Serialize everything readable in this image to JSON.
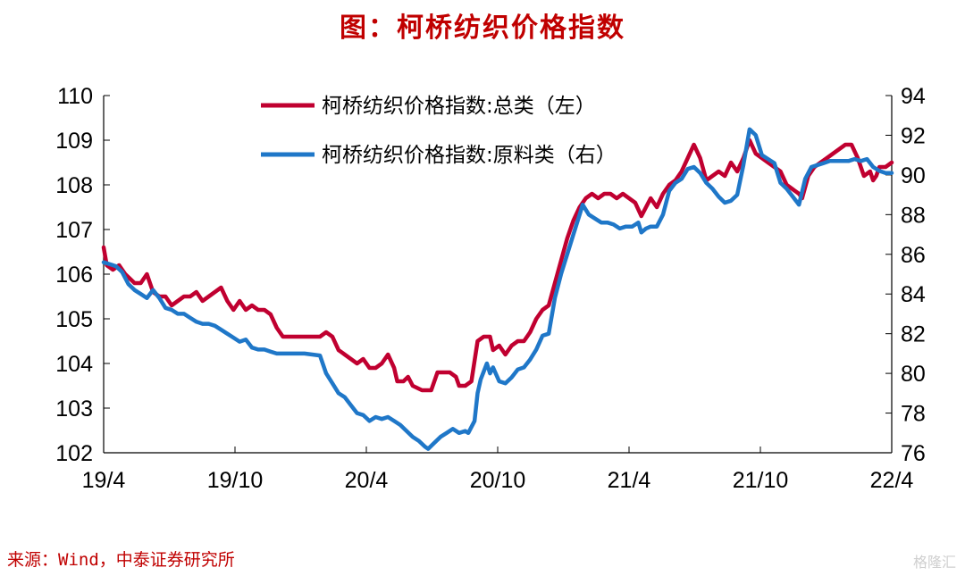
{
  "title": "图：柯桥纺织价格指数",
  "source": "来源：Wind，中泰证券研究所",
  "watermark": "格隆汇",
  "chart_data": {
    "type": "line",
    "x_tick_labels": [
      "19/4",
      "19/10",
      "20/4",
      "20/10",
      "21/4",
      "21/10",
      "22/4"
    ],
    "y_left": {
      "ylim": [
        102,
        110
      ],
      "ticks": [
        102,
        103,
        104,
        105,
        106,
        107,
        108,
        109,
        110
      ]
    },
    "y_right": {
      "ylim": [
        76,
        94
      ],
      "ticks": [
        76,
        78,
        80,
        82,
        84,
        86,
        88,
        90,
        92,
        94
      ]
    },
    "legend_position": "top-center",
    "colors": {
      "total": "#c00030",
      "raw": "#1f77c8"
    },
    "series": [
      {
        "name": "柯桥纺织价格指数:总类（左）",
        "axis": "left",
        "points": [
          [
            0.0,
            106.6
          ],
          [
            0.1,
            106.2
          ],
          [
            0.3,
            106.1
          ],
          [
            0.5,
            106.2
          ],
          [
            0.7,
            106.0
          ],
          [
            1.0,
            105.8
          ],
          [
            1.2,
            105.8
          ],
          [
            1.4,
            106.0
          ],
          [
            1.6,
            105.6
          ],
          [
            1.8,
            105.5
          ],
          [
            2.0,
            105.5
          ],
          [
            2.2,
            105.3
          ],
          [
            2.4,
            105.4
          ],
          [
            2.6,
            105.5
          ],
          [
            2.8,
            105.5
          ],
          [
            3.0,
            105.6
          ],
          [
            3.2,
            105.4
          ],
          [
            3.4,
            105.5
          ],
          [
            3.6,
            105.6
          ],
          [
            3.8,
            105.7
          ],
          [
            4.0,
            105.4
          ],
          [
            4.2,
            105.2
          ],
          [
            4.4,
            105.4
          ],
          [
            4.6,
            105.2
          ],
          [
            4.8,
            105.3
          ],
          [
            5.0,
            105.2
          ],
          [
            5.2,
            105.2
          ],
          [
            5.4,
            105.1
          ],
          [
            5.6,
            104.8
          ],
          [
            5.8,
            104.6
          ],
          [
            6.0,
            104.6
          ],
          [
            6.5,
            104.6
          ],
          [
            7.0,
            104.6
          ],
          [
            7.2,
            104.7
          ],
          [
            7.4,
            104.6
          ],
          [
            7.6,
            104.3
          ],
          [
            7.8,
            104.2
          ],
          [
            8.0,
            104.1
          ],
          [
            8.2,
            104.0
          ],
          [
            8.4,
            104.1
          ],
          [
            8.6,
            103.9
          ],
          [
            8.8,
            103.9
          ],
          [
            9.0,
            104.0
          ],
          [
            9.2,
            104.2
          ],
          [
            9.4,
            103.9
          ],
          [
            9.5,
            103.6
          ],
          [
            9.7,
            103.6
          ],
          [
            9.85,
            103.7
          ],
          [
            10.0,
            103.5
          ],
          [
            10.3,
            103.4
          ],
          [
            10.6,
            103.4
          ],
          [
            10.8,
            103.8
          ],
          [
            11.2,
            103.8
          ],
          [
            11.4,
            103.7
          ],
          [
            11.5,
            103.5
          ],
          [
            11.7,
            103.5
          ],
          [
            11.9,
            103.6
          ],
          [
            12.1,
            104.5
          ],
          [
            12.3,
            104.6
          ],
          [
            12.5,
            104.6
          ],
          [
            12.6,
            104.3
          ],
          [
            12.8,
            104.4
          ],
          [
            13.0,
            104.2
          ],
          [
            13.2,
            104.4
          ],
          [
            13.4,
            104.5
          ],
          [
            13.6,
            104.5
          ],
          [
            13.8,
            104.7
          ],
          [
            14.0,
            105.0
          ],
          [
            14.2,
            105.2
          ],
          [
            14.4,
            105.3
          ],
          [
            14.6,
            105.8
          ],
          [
            14.8,
            106.3
          ],
          [
            15.0,
            106.8
          ],
          [
            15.2,
            107.2
          ],
          [
            15.4,
            107.5
          ],
          [
            15.6,
            107.7
          ],
          [
            15.8,
            107.8
          ],
          [
            16.0,
            107.7
          ],
          [
            16.2,
            107.8
          ],
          [
            16.4,
            107.8
          ],
          [
            16.6,
            107.7
          ],
          [
            16.8,
            107.8
          ],
          [
            17.0,
            107.7
          ],
          [
            17.2,
            107.6
          ],
          [
            17.4,
            107.3
          ],
          [
            17.55,
            107.5
          ],
          [
            17.7,
            107.7
          ],
          [
            17.9,
            107.5
          ],
          [
            18.1,
            107.8
          ],
          [
            18.3,
            108.0
          ],
          [
            18.5,
            108.1
          ],
          [
            18.7,
            108.3
          ],
          [
            18.9,
            108.6
          ],
          [
            19.1,
            108.9
          ],
          [
            19.3,
            108.6
          ],
          [
            19.5,
            108.1
          ],
          [
            19.7,
            108.2
          ],
          [
            19.9,
            108.3
          ],
          [
            20.1,
            108.2
          ],
          [
            20.3,
            108.5
          ],
          [
            20.5,
            108.3
          ],
          [
            20.7,
            108.6
          ],
          [
            20.9,
            109.0
          ],
          [
            21.1,
            108.7
          ],
          [
            21.3,
            108.6
          ],
          [
            21.5,
            108.5
          ],
          [
            21.7,
            108.4
          ],
          [
            21.9,
            108.3
          ],
          [
            22.1,
            108.0
          ],
          [
            22.3,
            107.9
          ],
          [
            22.5,
            107.8
          ],
          [
            22.6,
            107.7
          ],
          [
            22.8,
            108.2
          ],
          [
            23.0,
            108.4
          ],
          [
            23.2,
            108.5
          ],
          [
            23.4,
            108.6
          ],
          [
            23.6,
            108.7
          ],
          [
            23.8,
            108.8
          ],
          [
            24.0,
            108.9
          ],
          [
            24.2,
            108.9
          ],
          [
            24.4,
            108.6
          ],
          [
            24.5,
            108.4
          ],
          [
            24.6,
            108.2
          ],
          [
            24.8,
            108.3
          ],
          [
            24.9,
            108.1
          ],
          [
            25.0,
            108.2
          ],
          [
            25.1,
            108.4
          ],
          [
            25.3,
            108.4
          ],
          [
            25.5,
            108.5
          ]
        ]
      },
      {
        "name": "柯桥纺织价格指数:原料类（右）",
        "axis": "right",
        "points": [
          [
            0.0,
            85.6
          ],
          [
            0.2,
            85.5
          ],
          [
            0.4,
            85.4
          ],
          [
            0.6,
            85.1
          ],
          [
            0.8,
            84.5
          ],
          [
            1.0,
            84.2
          ],
          [
            1.2,
            84.0
          ],
          [
            1.4,
            83.8
          ],
          [
            1.6,
            84.2
          ],
          [
            1.8,
            83.8
          ],
          [
            2.0,
            83.3
          ],
          [
            2.2,
            83.2
          ],
          [
            2.4,
            83.0
          ],
          [
            2.6,
            83.0
          ],
          [
            2.8,
            82.8
          ],
          [
            3.0,
            82.6
          ],
          [
            3.2,
            82.5
          ],
          [
            3.4,
            82.5
          ],
          [
            3.6,
            82.4
          ],
          [
            3.8,
            82.2
          ],
          [
            4.0,
            82.0
          ],
          [
            4.2,
            81.8
          ],
          [
            4.4,
            81.6
          ],
          [
            4.6,
            81.7
          ],
          [
            4.8,
            81.3
          ],
          [
            5.0,
            81.2
          ],
          [
            5.2,
            81.2
          ],
          [
            5.4,
            81.1
          ],
          [
            5.6,
            81.0
          ],
          [
            6.0,
            81.0
          ],
          [
            6.5,
            81.0
          ],
          [
            7.0,
            80.9
          ],
          [
            7.2,
            80.0
          ],
          [
            7.4,
            79.5
          ],
          [
            7.6,
            79.0
          ],
          [
            7.8,
            78.8
          ],
          [
            8.0,
            78.4
          ],
          [
            8.2,
            78.0
          ],
          [
            8.4,
            77.9
          ],
          [
            8.6,
            77.6
          ],
          [
            8.8,
            77.8
          ],
          [
            9.0,
            77.7
          ],
          [
            9.2,
            77.8
          ],
          [
            9.4,
            77.6
          ],
          [
            9.6,
            77.4
          ],
          [
            9.8,
            77.1
          ],
          [
            10.0,
            76.8
          ],
          [
            10.2,
            76.6
          ],
          [
            10.4,
            76.3
          ],
          [
            10.5,
            76.2
          ],
          [
            10.7,
            76.5
          ],
          [
            10.9,
            76.8
          ],
          [
            11.1,
            77.0
          ],
          [
            11.3,
            77.2
          ],
          [
            11.5,
            77.0
          ],
          [
            11.7,
            77.1
          ],
          [
            11.8,
            77.0
          ],
          [
            12.0,
            77.6
          ],
          [
            12.1,
            79.0
          ],
          [
            12.2,
            79.7
          ],
          [
            12.4,
            80.5
          ],
          [
            12.5,
            80.0
          ],
          [
            12.6,
            80.3
          ],
          [
            12.8,
            79.6
          ],
          [
            13.0,
            79.5
          ],
          [
            13.2,
            79.8
          ],
          [
            13.4,
            80.2
          ],
          [
            13.6,
            80.3
          ],
          [
            13.8,
            80.7
          ],
          [
            14.0,
            81.2
          ],
          [
            14.2,
            81.9
          ],
          [
            14.4,
            82.0
          ],
          [
            14.6,
            83.8
          ],
          [
            14.8,
            85.0
          ],
          [
            15.0,
            86.0
          ],
          [
            15.2,
            87.0
          ],
          [
            15.4,
            88.0
          ],
          [
            15.5,
            88.5
          ],
          [
            15.7,
            88.0
          ],
          [
            15.9,
            87.8
          ],
          [
            16.1,
            87.6
          ],
          [
            16.3,
            87.6
          ],
          [
            16.5,
            87.5
          ],
          [
            16.7,
            87.3
          ],
          [
            16.9,
            87.4
          ],
          [
            17.1,
            87.4
          ],
          [
            17.3,
            87.6
          ],
          [
            17.4,
            87.1
          ],
          [
            17.55,
            87.3
          ],
          [
            17.7,
            87.4
          ],
          [
            17.9,
            87.4
          ],
          [
            18.1,
            88.0
          ],
          [
            18.3,
            89.2
          ],
          [
            18.5,
            89.6
          ],
          [
            18.7,
            89.8
          ],
          [
            18.9,
            90.3
          ],
          [
            19.1,
            90.4
          ],
          [
            19.3,
            90.1
          ],
          [
            19.5,
            89.6
          ],
          [
            19.7,
            89.3
          ],
          [
            19.9,
            88.9
          ],
          [
            20.1,
            88.6
          ],
          [
            20.3,
            88.7
          ],
          [
            20.5,
            89.0
          ],
          [
            20.7,
            90.5
          ],
          [
            20.9,
            92.3
          ],
          [
            21.1,
            92.0
          ],
          [
            21.3,
            91.0
          ],
          [
            21.5,
            90.8
          ],
          [
            21.7,
            90.6
          ],
          [
            21.9,
            89.6
          ],
          [
            22.1,
            89.3
          ],
          [
            22.3,
            88.9
          ],
          [
            22.5,
            88.5
          ],
          [
            22.7,
            89.8
          ],
          [
            22.9,
            90.4
          ],
          [
            23.1,
            90.5
          ],
          [
            23.3,
            90.6
          ],
          [
            23.5,
            90.7
          ],
          [
            23.7,
            90.7
          ],
          [
            23.9,
            90.7
          ],
          [
            24.1,
            90.7
          ],
          [
            24.3,
            90.8
          ],
          [
            24.5,
            90.7
          ],
          [
            24.7,
            90.8
          ],
          [
            24.9,
            90.4
          ],
          [
            25.1,
            90.2
          ],
          [
            25.3,
            90.1
          ],
          [
            25.5,
            90.1
          ]
        ]
      }
    ]
  }
}
